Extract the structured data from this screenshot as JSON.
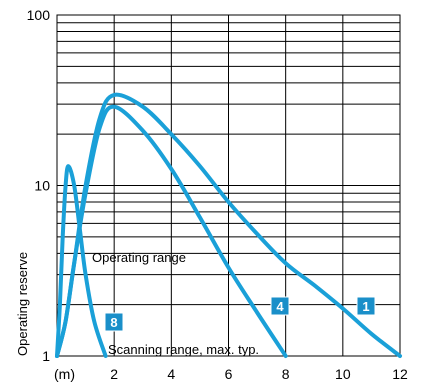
{
  "chart_data": {
    "type": "line",
    "x_scale": "linear",
    "y_scale": "log",
    "xlim": [
      0,
      12
    ],
    "ylim": [
      1,
      100
    ],
    "x_ticks": [
      "2",
      "4",
      "6",
      "8",
      "10",
      "12"
    ],
    "x_unit": "(m)",
    "y_ticks": [
      "1",
      "10",
      "100"
    ],
    "ylabel": "Operating reserve",
    "grid": true,
    "annotations": {
      "operating_range": "Operating range",
      "scanning_range": "Scanning range, max. typ."
    },
    "line_color": "#1aa0d8",
    "badge_color": "#1a8fc9",
    "series": [
      {
        "name": "1",
        "x": [
          0.0,
          0.3,
          0.6,
          1.0,
          1.5,
          2.0,
          3.0,
          4.0,
          5.0,
          6.0,
          7.0,
          8.0,
          9.0,
          10.0,
          11.0,
          12.0
        ],
        "y": [
          1.0,
          1.6,
          3.5,
          10.0,
          25.0,
          34.0,
          29.0,
          20.0,
          13.0,
          8.0,
          5.2,
          3.5,
          2.6,
          1.9,
          1.35,
          1.0
        ]
      },
      {
        "name": "4",
        "x": [
          0.0,
          0.3,
          0.6,
          1.0,
          1.5,
          2.0,
          3.0,
          4.0,
          5.0,
          6.0,
          7.0,
          8.0
        ],
        "y": [
          1.0,
          1.6,
          3.5,
          9.0,
          22.0,
          29.0,
          21.0,
          12.5,
          6.5,
          3.3,
          1.8,
          1.0
        ]
      },
      {
        "name": "8",
        "x": [
          0.0,
          0.1,
          0.2,
          0.3,
          0.4,
          0.6,
          0.8,
          1.0,
          1.3,
          1.7
        ],
        "y": [
          1.0,
          2.0,
          5.0,
          10.0,
          13.0,
          10.0,
          5.5,
          3.0,
          1.6,
          1.0
        ]
      }
    ]
  }
}
